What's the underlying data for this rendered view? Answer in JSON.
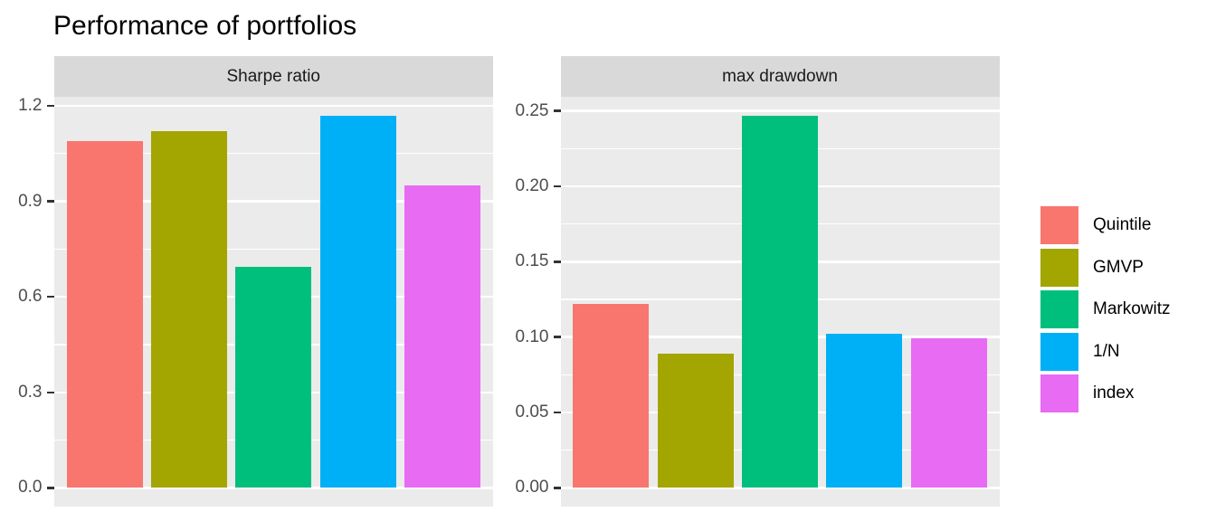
{
  "title": "Performance of portfolios",
  "colors": {
    "background": "#ffffff",
    "panel_background": "#ebebeb",
    "strip_background": "#d9d9d9",
    "gridline": "#ffffff",
    "axis_text": "#4d4d4d",
    "tick_mark": "#333333",
    "strip_text": "#1a1a1a",
    "title_text": "#000000"
  },
  "chart_data": {
    "type": "bar",
    "title": "Performance of portfolios",
    "xlabel": "",
    "ylabel": "",
    "grid": true,
    "categories": [
      "Quintile",
      "GMVP",
      "Markowitz",
      "1/N",
      "index"
    ],
    "palette": [
      "#F8766D",
      "#A3A500",
      "#00BF7D",
      "#00B0F6",
      "#E76BF3"
    ],
    "facets": [
      {
        "label": "Sharpe ratio",
        "values": [
          1.09,
          1.12,
          0.695,
          1.17,
          0.95
        ],
        "yticks": [
          0.0,
          0.3,
          0.6,
          0.9,
          1.2
        ],
        "ytick_labels": [
          "0.0",
          "0.3",
          "0.6",
          "0.9",
          "1.2"
        ],
        "ylim": [
          0,
          1.23
        ]
      },
      {
        "label": "max drawdown",
        "values": [
          0.122,
          0.089,
          0.247,
          0.102,
          0.099
        ],
        "yticks": [
          0.0,
          0.05,
          0.1,
          0.15,
          0.2,
          0.25
        ],
        "ytick_labels": [
          "0.00",
          "0.05",
          "0.10",
          "0.15",
          "0.20",
          "0.25"
        ],
        "ylim": [
          0,
          0.26
        ]
      }
    ],
    "legend": {
      "position": "right",
      "labels": [
        "Quintile",
        "GMVP",
        "Markowitz",
        "1/N",
        "index"
      ]
    }
  }
}
